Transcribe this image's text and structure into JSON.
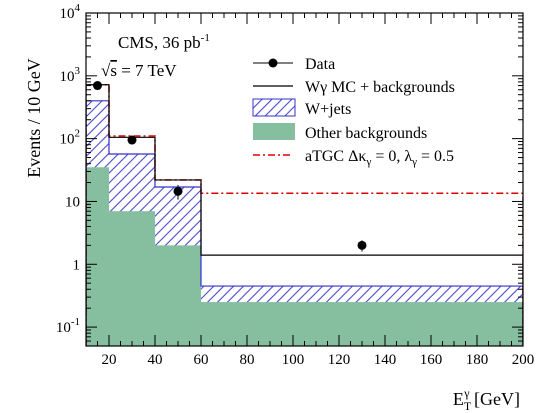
{
  "chart_data": {
    "type": "histogram",
    "x_title_main": "E",
    "x_title_sub": "T",
    "x_title_sup": "γ",
    "x_title_unit": " [GeV]",
    "ylabel": "Events / 10 GeV",
    "xlim": [
      10,
      200
    ],
    "ylim": [
      0.05,
      10000
    ],
    "yscale": "log",
    "grid": false,
    "legend_position": "top-right",
    "x_ticks": [
      20,
      40,
      60,
      80,
      100,
      120,
      140,
      160,
      180,
      200
    ],
    "x_tick_labels": [
      "20",
      "40",
      "60",
      "80",
      "100",
      "120",
      "140",
      "160",
      "180",
      "200"
    ],
    "y_ticks": [
      {
        "value": 0.1,
        "base": "10",
        "exp": "-1"
      },
      {
        "value": 1,
        "text": "1"
      },
      {
        "value": 10,
        "text": "10"
      },
      {
        "value": 100,
        "base": "10",
        "exp": "2"
      },
      {
        "value": 1000,
        "base": "10",
        "exp": "3"
      },
      {
        "value": 10000,
        "base": "10",
        "exp": "4"
      }
    ],
    "bin_edges": [
      10,
      20,
      40,
      60,
      200
    ],
    "series": [
      {
        "name": "Other backgrounds",
        "style": "fill",
        "color": "#85bfa0",
        "values": [
          35,
          7,
          2,
          0.25
        ]
      },
      {
        "name": "W+jets",
        "style": "hatch",
        "color": "#3333cc",
        "values": [
          400,
          57,
          17,
          0.45
        ]
      },
      {
        "name": "Wγ MC + backgrounds",
        "style": "line",
        "color": "#000000",
        "values": [
          720,
          105,
          22,
          1.4
        ]
      },
      {
        "name": "aTGC Δκ_γ = 0, λ_γ = 0.5",
        "style": "dashdot",
        "color": "#dd0000",
        "values": [
          720,
          110,
          22,
          13.5
        ]
      },
      {
        "name": "Data",
        "style": "points",
        "color": "#000000",
        "x": [
          15,
          30,
          50,
          130
        ],
        "y": [
          700,
          95,
          14.5,
          2
        ],
        "yerr": [
          27,
          10,
          3.8,
          0.4
        ]
      }
    ]
  },
  "legend": [
    {
      "key": "data",
      "label": "Data"
    },
    {
      "key": "mc",
      "label": "Wγ MC + backgrounds"
    },
    {
      "key": "wjets",
      "label": "W+jets"
    },
    {
      "key": "other",
      "label": "Other backgrounds"
    },
    {
      "key": "atgc",
      "label_main": "aTGC Δκ",
      "label_sub1": "γ",
      "label_mid": " = 0, λ",
      "label_sub2": "γ",
      "label_end": " = 0.5"
    }
  ],
  "cms_label": {
    "line1": "CMS, 36 pb",
    "line1_sup": "-1",
    "line2_sqrt": "√",
    "line2_s": "s",
    "line2_rest": " = 7 TeV"
  }
}
